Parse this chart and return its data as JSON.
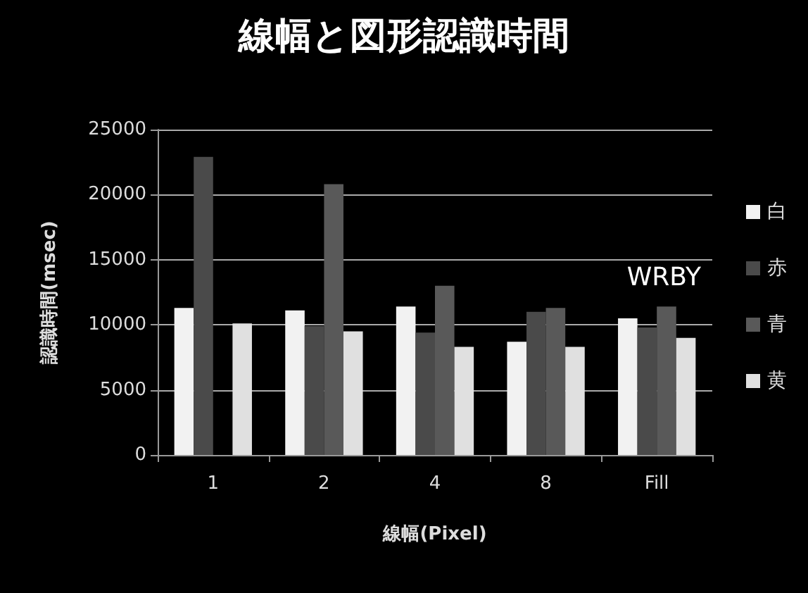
{
  "chart_data": {
    "type": "bar",
    "title": "線幅と図形認識時間",
    "xlabel": "線幅(Pixel)",
    "ylabel": "認識時間(msec)",
    "categories": [
      "1",
      "2",
      "4",
      "8",
      "Fill"
    ],
    "series": [
      {
        "name": "白",
        "color": "#f2f2f2",
        "values": [
          11300,
          11100,
          11400,
          8700,
          10500
        ]
      },
      {
        "name": "赤",
        "color": "#4a4a4a",
        "values": [
          22900,
          9900,
          9400,
          11000,
          9800
        ]
      },
      {
        "name": "青",
        "color": "#595959",
        "values": [
          null,
          20800,
          13000,
          11300,
          11400
        ]
      },
      {
        "name": "黄",
        "color": "#e0e0e0",
        "values": [
          10100,
          9500,
          8300,
          8300,
          9000
        ]
      }
    ],
    "ylim": [
      0,
      25000
    ],
    "yticks": [
      0,
      5000,
      10000,
      15000,
      20000,
      25000
    ],
    "grid": "y",
    "legend": "right",
    "annotations": [
      "WRBY"
    ]
  }
}
